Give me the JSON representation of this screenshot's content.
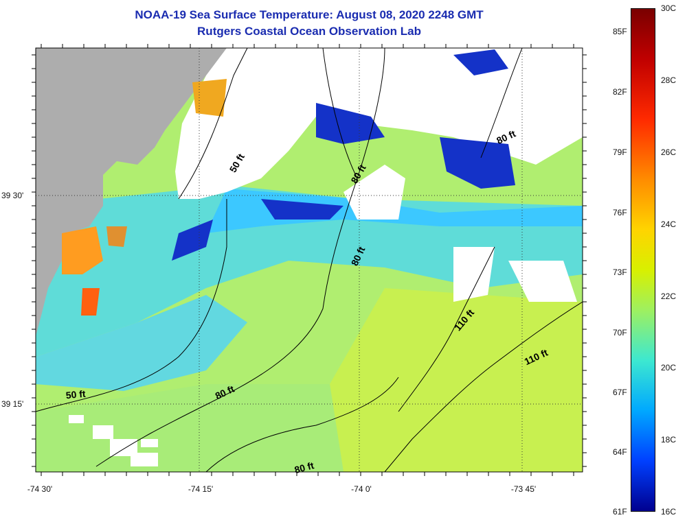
{
  "title": {
    "line1": "NOAA-19 Sea Surface Temperature:  August 08, 2020 2248 GMT",
    "line2": "Rutgers Coastal Ocean Observation Lab"
  },
  "lat_labels": [
    "39 30'",
    "39 15'"
  ],
  "lon_labels": [
    "-74 30'",
    "-74 15'",
    "-74 0'",
    "-73 45'"
  ],
  "contour_labels": [
    "50 ft",
    "50 ft",
    "80 ft",
    "80 ft",
    "80 ft",
    "80 ft",
    "110 ft",
    "110 ft"
  ],
  "colorbar": {
    "fahrenheit": [
      "85F",
      "82F",
      "79F",
      "76F",
      "73F",
      "70F",
      "67F",
      "64F",
      "61F"
    ],
    "celsius": [
      "30C",
      "28C",
      "26C",
      "24C",
      "22C",
      "20C",
      "18C",
      "16C"
    ],
    "colors": [
      "#7a0000",
      "#c00000",
      "#ff2a00",
      "#ff8c00",
      "#ffd400",
      "#d8f000",
      "#9ef060",
      "#3de8d0",
      "#00a8ff",
      "#0040ff",
      "#00008f"
    ]
  },
  "map_colors": {
    "land": "#adadad",
    "cloud": "#ffffff",
    "cold": "#1432c8",
    "cool": "#3cc8ff",
    "mid": "#70e0d8",
    "warm": "#b8f060",
    "hot": "#ff9c20"
  }
}
